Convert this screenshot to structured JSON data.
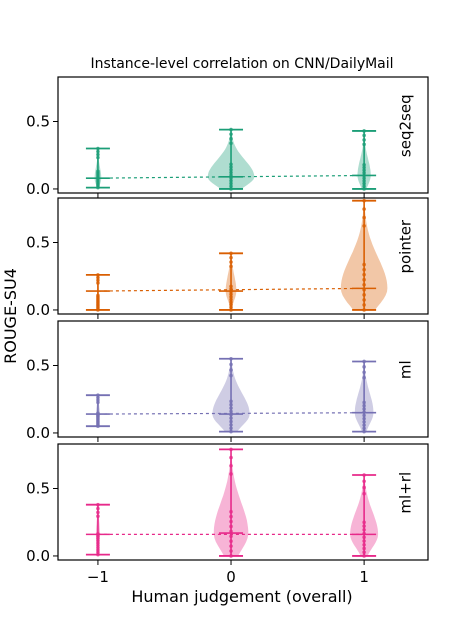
{
  "chart_data": {
    "type": "violin",
    "title": "Instance-level correlation on CNN/DailyMail",
    "xlabel": "Human judgement (overall)",
    "ylabel": "ROUGE-SU4",
    "x_ticks": [
      "−1",
      "0",
      "1"
    ],
    "x_values": [
      -1,
      0,
      1
    ],
    "xlim": [
      -1.3,
      1.48
    ],
    "ylim": [
      -0.03,
      0.83
    ],
    "y_ticks": [
      "0.0",
      "0.5"
    ],
    "y_tick_values": [
      0.0,
      0.5
    ],
    "panels": [
      {
        "name": "seq2seq",
        "color": "#1b9e77",
        "points": [
          {
            "x": -1,
            "median": 0.08,
            "min": 0.01,
            "max": 0.3,
            "width": 0.05
          },
          {
            "x": 0,
            "median": 0.09,
            "min": 0.0,
            "max": 0.44,
            "width": 0.35
          },
          {
            "x": 1,
            "median": 0.1,
            "min": 0.0,
            "max": 0.43,
            "width": 0.1
          }
        ]
      },
      {
        "name": "pointer",
        "color": "#d95f02",
        "points": [
          {
            "x": -1,
            "median": 0.14,
            "min": 0.0,
            "max": 0.26,
            "width": 0.015
          },
          {
            "x": 0,
            "median": 0.14,
            "min": 0.0,
            "max": 0.42,
            "width": 0.08
          },
          {
            "x": 1,
            "median": 0.16,
            "min": 0.0,
            "max": 0.81,
            "width": 0.35
          }
        ]
      },
      {
        "name": "ml",
        "color": "#7570b3",
        "points": [
          {
            "x": -1,
            "median": 0.14,
            "min": 0.05,
            "max": 0.28,
            "width": 0.03
          },
          {
            "x": 0,
            "median": 0.14,
            "min": 0.01,
            "max": 0.55,
            "width": 0.28
          },
          {
            "x": 1,
            "median": 0.15,
            "min": 0.01,
            "max": 0.53,
            "width": 0.14
          }
        ]
      },
      {
        "name": "ml+rl",
        "color": "#e7298a",
        "points": [
          {
            "x": -1,
            "median": 0.16,
            "min": 0.01,
            "max": 0.38,
            "width": 0.03
          },
          {
            "x": 0,
            "median": 0.17,
            "min": 0.0,
            "max": 0.79,
            "width": 0.26
          },
          {
            "x": 1,
            "median": 0.16,
            "min": 0.0,
            "max": 0.6,
            "width": 0.21
          }
        ]
      }
    ],
    "trend_line": "dashed line connecting medians",
    "grid": false,
    "legend": "none (panel labels at right)"
  }
}
